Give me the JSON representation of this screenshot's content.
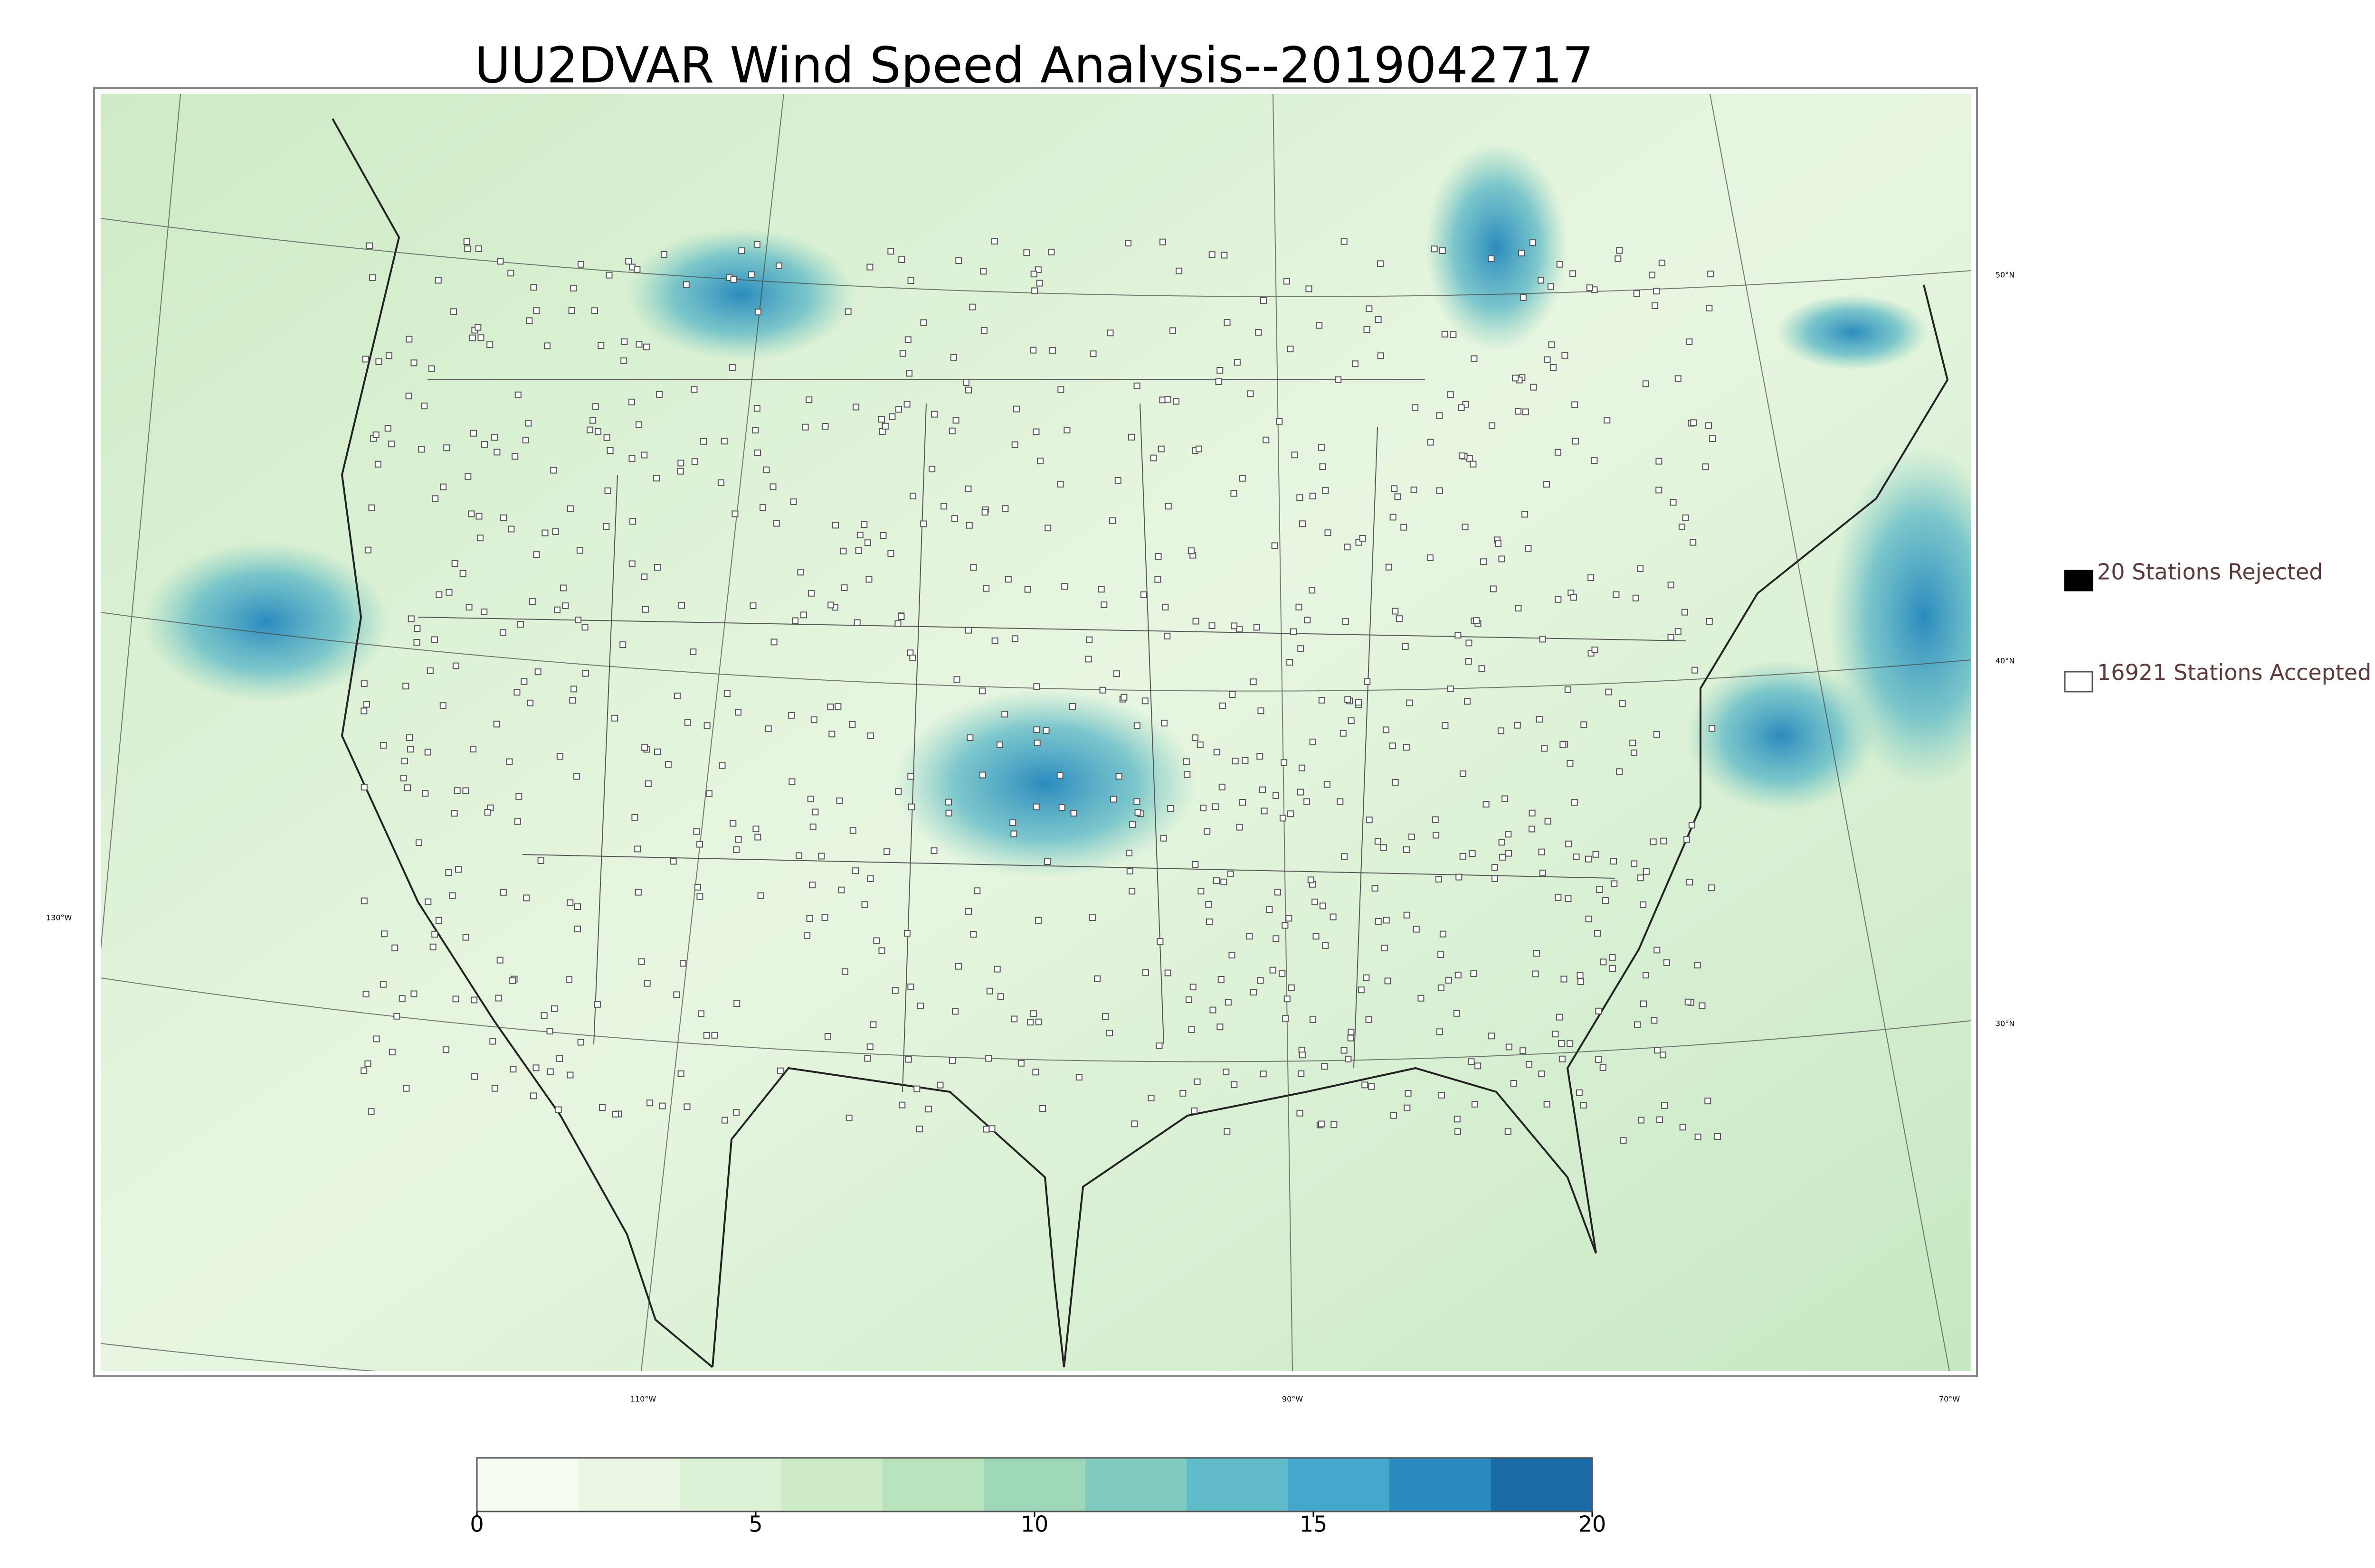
{
  "title": "UU2DVAR Wind Speed Analysis--2019042717",
  "legend": [
    "20 Stations Rejected",
    "16921 Stations Accepted"
  ],
  "graticule": {
    "lat": [
      "50°N",
      "40°N",
      "30°N"
    ],
    "lon": [
      "130°W",
      "110°W",
      "90°W",
      "70°W"
    ]
  },
  "colorbar": {
    "lim": [
      0,
      20
    ],
    "ticks": [
      0,
      5,
      10,
      15,
      20
    ],
    "colors": [
      "#f7fcf0",
      "#eaf7e4",
      "#dcf1d6",
      "#cdebc5",
      "#b9e3bc",
      "#9fd8b8",
      "#80cbc0",
      "#62bbc8",
      "#46a7cc",
      "#2b8bbe",
      "#1b6ba6"
    ]
  }
}
